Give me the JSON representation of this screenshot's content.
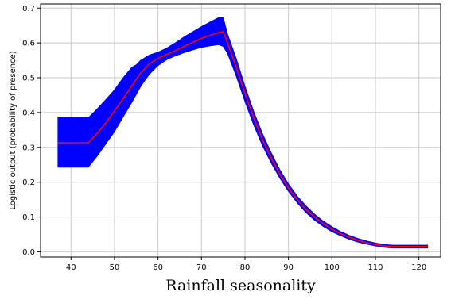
{
  "chart_data": {
    "type": "area",
    "title": "",
    "xlabel": "Rainfall seasonality",
    "ylabel": "Logistic output (probability of presence)",
    "xlim": [
      33,
      125
    ],
    "ylim": [
      -0.015,
      0.712
    ],
    "x_ticks": [
      40,
      50,
      60,
      70,
      80,
      90,
      100,
      110,
      120
    ],
    "y_ticks": [
      0.0,
      0.1,
      0.2,
      0.3,
      0.4,
      0.5,
      0.6,
      0.7
    ],
    "grid": true,
    "legend": "none",
    "colors": {
      "band": "#0000ff",
      "mean": "#ff0000",
      "grid": "#c8c8c8",
      "axis": "#000000"
    },
    "series": [
      {
        "kind": "line",
        "x": [
          37,
          44,
          46,
          48,
          50,
          52,
          54,
          56,
          58,
          60,
          62,
          64,
          66,
          68,
          70,
          72,
          74,
          75,
          76,
          78,
          80,
          82,
          84,
          86,
          88,
          90,
          92,
          94,
          96,
          98,
          100,
          102,
          104,
          106,
          108,
          110,
          112,
          114,
          115,
          118,
          122
        ],
        "y": [
          0.313,
          0.313,
          0.34,
          0.37,
          0.405,
          0.44,
          0.477,
          0.513,
          0.54,
          0.556,
          0.567,
          0.578,
          0.59,
          0.602,
          0.613,
          0.622,
          0.63,
          0.632,
          0.6,
          0.53,
          0.455,
          0.385,
          0.323,
          0.27,
          0.223,
          0.183,
          0.15,
          0.122,
          0.1,
          0.081,
          0.065,
          0.052,
          0.042,
          0.033,
          0.026,
          0.021,
          0.017,
          0.015,
          0.015,
          0.015,
          0.015
        ]
      },
      {
        "kind": "band",
        "x": [
          37,
          44,
          46,
          48,
          50,
          52,
          54,
          55,
          56,
          58,
          60,
          62,
          64,
          66,
          68,
          70,
          72,
          74,
          75,
          76,
          78,
          80,
          82,
          84,
          86,
          88,
          90,
          92,
          94,
          96,
          98,
          100,
          102,
          104,
          106,
          108,
          110,
          112,
          114,
          115,
          118,
          122
        ],
        "upper": [
          0.385,
          0.385,
          0.41,
          0.437,
          0.465,
          0.5,
          0.53,
          0.537,
          0.55,
          0.565,
          0.573,
          0.585,
          0.6,
          0.617,
          0.632,
          0.647,
          0.66,
          0.673,
          0.673,
          0.625,
          0.555,
          0.475,
          0.403,
          0.34,
          0.285,
          0.236,
          0.195,
          0.16,
          0.132,
          0.108,
          0.088,
          0.072,
          0.058,
          0.047,
          0.038,
          0.031,
          0.025,
          0.021,
          0.019,
          0.019,
          0.019,
          0.019
        ],
        "lower": [
          0.243,
          0.243,
          0.275,
          0.31,
          0.345,
          0.388,
          0.43,
          0.452,
          0.475,
          0.51,
          0.535,
          0.552,
          0.563,
          0.572,
          0.58,
          0.587,
          0.592,
          0.595,
          0.59,
          0.57,
          0.505,
          0.432,
          0.365,
          0.306,
          0.256,
          0.212,
          0.174,
          0.141,
          0.113,
          0.091,
          0.073,
          0.058,
          0.046,
          0.036,
          0.028,
          0.022,
          0.017,
          0.013,
          0.011,
          0.011,
          0.011,
          0.011
        ]
      }
    ]
  }
}
